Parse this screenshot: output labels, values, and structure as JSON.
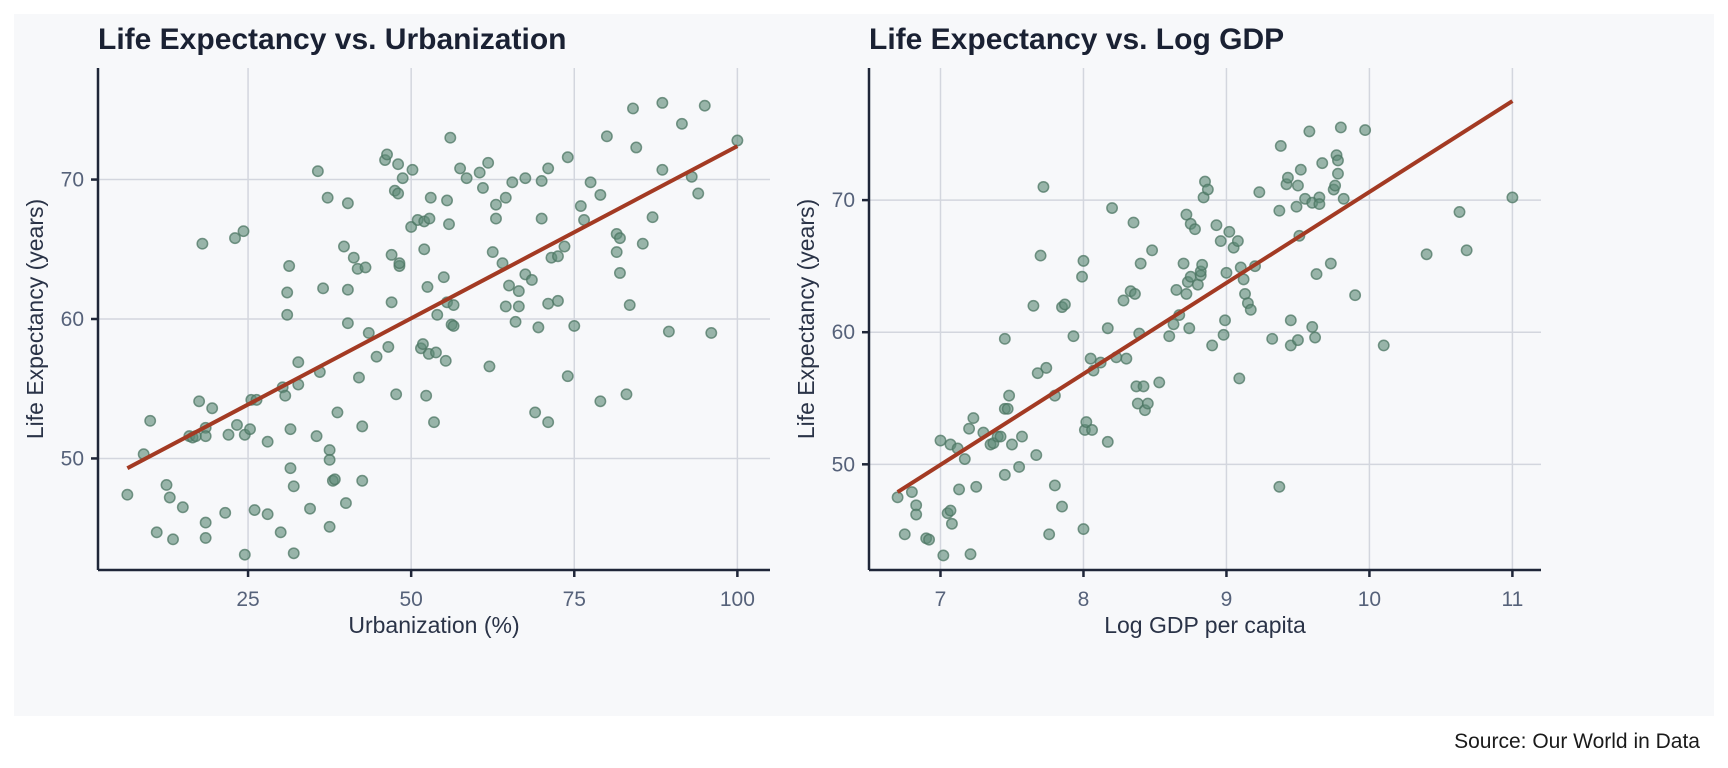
{
  "source_note": "Source: Our World in Data",
  "colors": {
    "points": "#5e8a78",
    "fit_line": "#a33a23",
    "background": "#f7f8fa",
    "grid": "#d3d6de"
  },
  "chart_data": [
    {
      "type": "scatter",
      "title": "Life Expectancy vs. Urbanization",
      "xlabel": "Urbanization (%)",
      "ylabel": "Life Expectancy (years)",
      "xlim": [
        2,
        105
      ],
      "ylim": [
        42,
        78
      ],
      "xticks": [
        25,
        50,
        75,
        100
      ],
      "yticks": [
        50,
        60,
        70
      ],
      "grid": true,
      "trendline": {
        "x": [
          6.5,
          100
        ],
        "y": [
          49.3,
          72.4
        ]
      },
      "points": [
        [
          6.5,
          47.4
        ],
        [
          9,
          50.3
        ],
        [
          10,
          52.7
        ],
        [
          11,
          44.7
        ],
        [
          12.5,
          48.1
        ],
        [
          13,
          47.2
        ],
        [
          13.5,
          44.2
        ],
        [
          15,
          46.5
        ],
        [
          16,
          51.6
        ],
        [
          16.5,
          51.5
        ],
        [
          17,
          51.6
        ],
        [
          17.5,
          54.1
        ],
        [
          18,
          65.4
        ],
        [
          18.5,
          52.2
        ],
        [
          18.5,
          51.6
        ],
        [
          18.5,
          44.3
        ],
        [
          18.5,
          45.4
        ],
        [
          19.5,
          53.6
        ],
        [
          21.5,
          46.1
        ],
        [
          22,
          51.7
        ],
        [
          23,
          65.8
        ],
        [
          23.3,
          52.4
        ],
        [
          24.3,
          66.3
        ],
        [
          24.5,
          51.7
        ],
        [
          24.5,
          43.1
        ],
        [
          25.3,
          52.1
        ],
        [
          25.5,
          54.2
        ],
        [
          26,
          46.3
        ],
        [
          26.3,
          54.2
        ],
        [
          28,
          46
        ],
        [
          28,
          51.2
        ],
        [
          30,
          44.7
        ],
        [
          30.3,
          55.1
        ],
        [
          30.7,
          54.5
        ],
        [
          31,
          60.3
        ],
        [
          31,
          61.9
        ],
        [
          31.3,
          63.8
        ],
        [
          31.5,
          52.1
        ],
        [
          31.5,
          49.3
        ],
        [
          32,
          48
        ],
        [
          32,
          43.2
        ],
        [
          32.7,
          55.3
        ],
        [
          32.7,
          56.9
        ],
        [
          34.5,
          46.4
        ],
        [
          35.5,
          51.6
        ],
        [
          35.7,
          70.6
        ],
        [
          36,
          56.2
        ],
        [
          36.5,
          62.2
        ],
        [
          37.2,
          68.7
        ],
        [
          37.5,
          50.6
        ],
        [
          37.5,
          49.9
        ],
        [
          37.5,
          45.1
        ],
        [
          38,
          48.4
        ],
        [
          38.3,
          48.5
        ],
        [
          38.7,
          53.3
        ],
        [
          39.7,
          65.2
        ],
        [
          40,
          46.8
        ],
        [
          40.3,
          68.3
        ],
        [
          40.3,
          62.1
        ],
        [
          40.3,
          59.7
        ],
        [
          41.2,
          64.4
        ],
        [
          41.8,
          63.6
        ],
        [
          42,
          55.8
        ],
        [
          42.5,
          52.3
        ],
        [
          42.5,
          48.4
        ],
        [
          43,
          63.7
        ],
        [
          43.5,
          59
        ],
        [
          44.7,
          57.3
        ],
        [
          46,
          71.4
        ],
        [
          46.3,
          71.8
        ],
        [
          46.5,
          58
        ],
        [
          47,
          61.2
        ],
        [
          47,
          64.6
        ],
        [
          47.5,
          69.2
        ],
        [
          47.7,
          54.6
        ],
        [
          48,
          71.1
        ],
        [
          48,
          69
        ],
        [
          48.2,
          63.8
        ],
        [
          48.2,
          64
        ],
        [
          48.7,
          70.1
        ],
        [
          50,
          66.6
        ],
        [
          50.2,
          70.7
        ],
        [
          51,
          67.1
        ],
        [
          51.5,
          57.9
        ],
        [
          51.8,
          58.2
        ],
        [
          52,
          67
        ],
        [
          52,
          65
        ],
        [
          52.3,
          54.5
        ],
        [
          52.5,
          62.3
        ],
        [
          52.7,
          57.5
        ],
        [
          52.8,
          67.2
        ],
        [
          53,
          68.7
        ],
        [
          53.5,
          52.6
        ],
        [
          53.8,
          57.6
        ],
        [
          54,
          60.3
        ],
        [
          55,
          63
        ],
        [
          55.3,
          57
        ],
        [
          55.5,
          61.2
        ],
        [
          55.5,
          68.5
        ],
        [
          55.8,
          66.8
        ],
        [
          56,
          73
        ],
        [
          56.2,
          59.6
        ],
        [
          56.5,
          61
        ],
        [
          56.5,
          59.5
        ],
        [
          57.5,
          70.8
        ],
        [
          58.5,
          70.1
        ],
        [
          60.5,
          70.5
        ],
        [
          61,
          69.4
        ],
        [
          61.8,
          71.2
        ],
        [
          62,
          56.6
        ],
        [
          62.5,
          64.8
        ],
        [
          63,
          68.2
        ],
        [
          63,
          67.2
        ],
        [
          64,
          64
        ],
        [
          64.5,
          60.9
        ],
        [
          64.5,
          68.7
        ],
        [
          65,
          62.4
        ],
        [
          65.5,
          69.8
        ],
        [
          66,
          59.8
        ],
        [
          66.5,
          60.9
        ],
        [
          66.5,
          62
        ],
        [
          67.5,
          70.1
        ],
        [
          67.5,
          63.2
        ],
        [
          68.5,
          62.8
        ],
        [
          69,
          53.3
        ],
        [
          69.5,
          59.4
        ],
        [
          70,
          69.9
        ],
        [
          70,
          67.2
        ],
        [
          71,
          61.1
        ],
        [
          71,
          52.6
        ],
        [
          71,
          70.8
        ],
        [
          71.5,
          64.4
        ],
        [
          72.5,
          61.3
        ],
        [
          72.5,
          64.5
        ],
        [
          73.5,
          65.2
        ],
        [
          74,
          71.6
        ],
        [
          74,
          55.9
        ],
        [
          75,
          59.5
        ],
        [
          76,
          68.1
        ],
        [
          76.5,
          67.1
        ],
        [
          77.5,
          69.8
        ],
        [
          79,
          68.9
        ],
        [
          79,
          54.1
        ],
        [
          80,
          73.1
        ],
        [
          81.5,
          64.8
        ],
        [
          81.5,
          66.1
        ],
        [
          82,
          63.3
        ],
        [
          82,
          65.8
        ],
        [
          83,
          54.6
        ],
        [
          83.5,
          61
        ],
        [
          84,
          75.1
        ],
        [
          84.5,
          72.3
        ],
        [
          85.5,
          65.4
        ],
        [
          87,
          67.3
        ],
        [
          88.5,
          75.5
        ],
        [
          88.5,
          70.7
        ],
        [
          89.5,
          59.1
        ],
        [
          91.5,
          74
        ],
        [
          93,
          70.2
        ],
        [
          94,
          69
        ],
        [
          95,
          75.3
        ],
        [
          96,
          59
        ],
        [
          100,
          72.8
        ]
      ]
    },
    {
      "type": "scatter",
      "title": "Life Expectancy vs. Log GDP",
      "xlabel": "Log GDP per capita",
      "ylabel": "Life Expectancy (years)",
      "xlim": [
        6.5,
        11.2
      ],
      "ylim": [
        42,
        80
      ],
      "xticks": [
        7,
        8,
        9,
        10,
        11
      ],
      "yticks": [
        50,
        60,
        70
      ],
      "grid": true,
      "trendline": {
        "x": [
          6.7,
          11
        ],
        "y": [
          47.9,
          77.5
        ]
      },
      "points": [
        [
          6.7,
          47.5
        ],
        [
          6.75,
          44.7
        ],
        [
          6.8,
          47.9
        ],
        [
          6.83,
          46.9
        ],
        [
          6.83,
          46.2
        ],
        [
          6.9,
          44.4
        ],
        [
          6.92,
          44.3
        ],
        [
          7,
          51.8
        ],
        [
          7.02,
          43.1
        ],
        [
          7.05,
          46.3
        ],
        [
          7.07,
          46.5
        ],
        [
          7.07,
          51.5
        ],
        [
          7.08,
          45.5
        ],
        [
          7.12,
          51.2
        ],
        [
          7.13,
          48.1
        ],
        [
          7.17,
          50.4
        ],
        [
          7.2,
          52.7
        ],
        [
          7.21,
          43.2
        ],
        [
          7.23,
          53.5
        ],
        [
          7.25,
          48.3
        ],
        [
          7.3,
          52.4
        ],
        [
          7.35,
          51.5
        ],
        [
          7.37,
          51.6
        ],
        [
          7.4,
          52.1
        ],
        [
          7.42,
          52.1
        ],
        [
          7.45,
          49.2
        ],
        [
          7.45,
          59.5
        ],
        [
          7.45,
          54.2
        ],
        [
          7.47,
          54.2
        ],
        [
          7.48,
          55.2
        ],
        [
          7.5,
          51.5
        ],
        [
          7.55,
          49.8
        ],
        [
          7.57,
          52.1
        ],
        [
          7.65,
          62
        ],
        [
          7.67,
          50.7
        ],
        [
          7.68,
          56.9
        ],
        [
          7.7,
          65.8
        ],
        [
          7.72,
          71
        ],
        [
          7.74,
          57.3
        ],
        [
          7.76,
          44.7
        ],
        [
          7.8,
          48.4
        ],
        [
          7.8,
          55.2
        ],
        [
          7.85,
          46.8
        ],
        [
          7.85,
          61.9
        ],
        [
          7.87,
          62.1
        ],
        [
          7.93,
          59.7
        ],
        [
          7.99,
          64.2
        ],
        [
          8,
          45.1
        ],
        [
          8,
          65.4
        ],
        [
          8.01,
          52.6
        ],
        [
          8.02,
          53.2
        ],
        [
          8.05,
          58
        ],
        [
          8.06,
          52.6
        ],
        [
          8.07,
          57.1
        ],
        [
          8.12,
          57.7
        ],
        [
          8.17,
          51.7
        ],
        [
          8.17,
          60.3
        ],
        [
          8.2,
          69.4
        ],
        [
          8.23,
          58.1
        ],
        [
          8.28,
          62.4
        ],
        [
          8.3,
          58
        ],
        [
          8.33,
          63.1
        ],
        [
          8.35,
          68.3
        ],
        [
          8.36,
          62.9
        ],
        [
          8.37,
          55.9
        ],
        [
          8.38,
          54.6
        ],
        [
          8.39,
          59.9
        ],
        [
          8.4,
          65.2
        ],
        [
          8.42,
          55.9
        ],
        [
          8.43,
          54.1
        ],
        [
          8.45,
          54.6
        ],
        [
          8.48,
          66.2
        ],
        [
          8.53,
          56.2
        ],
        [
          8.6,
          59.7
        ],
        [
          8.63,
          60.6
        ],
        [
          8.65,
          63.2
        ],
        [
          8.67,
          61.3
        ],
        [
          8.7,
          65.2
        ],
        [
          8.72,
          68.9
        ],
        [
          8.72,
          62.9
        ],
        [
          8.73,
          63.8
        ],
        [
          8.74,
          60.3
        ],
        [
          8.75,
          64.2
        ],
        [
          8.75,
          68.2
        ],
        [
          8.78,
          67.8
        ],
        [
          8.8,
          63.6
        ],
        [
          8.82,
          64.3
        ],
        [
          8.82,
          64.6
        ],
        [
          8.83,
          65.1
        ],
        [
          8.84,
          70.2
        ],
        [
          8.85,
          71.4
        ],
        [
          8.87,
          70.8
        ],
        [
          8.9,
          59
        ],
        [
          8.93,
          68.1
        ],
        [
          8.96,
          66.9
        ],
        [
          8.98,
          59.8
        ],
        [
          8.99,
          60.9
        ],
        [
          9,
          64.5
        ],
        [
          9.02,
          67.6
        ],
        [
          9.05,
          66.4
        ],
        [
          9.08,
          66.9
        ],
        [
          9.09,
          56.5
        ],
        [
          9.1,
          64.9
        ],
        [
          9.12,
          64
        ],
        [
          9.13,
          62.9
        ],
        [
          9.15,
          62.2
        ],
        [
          9.17,
          61.7
        ],
        [
          9.2,
          65
        ],
        [
          9.23,
          70.6
        ],
        [
          9.32,
          59.5
        ],
        [
          9.37,
          48.3
        ],
        [
          9.37,
          69.2
        ],
        [
          9.38,
          74.1
        ],
        [
          9.42,
          71.2
        ],
        [
          9.43,
          71.7
        ],
        [
          9.45,
          60.9
        ],
        [
          9.45,
          59
        ],
        [
          9.49,
          69.5
        ],
        [
          9.5,
          59.4
        ],
        [
          9.5,
          71.1
        ],
        [
          9.51,
          67.3
        ],
        [
          9.52,
          72.3
        ],
        [
          9.55,
          70.1
        ],
        [
          9.58,
          75.2
        ],
        [
          9.6,
          60.4
        ],
        [
          9.6,
          69.8
        ],
        [
          9.62,
          59.6
        ],
        [
          9.63,
          64.4
        ],
        [
          9.65,
          70.2
        ],
        [
          9.65,
          69.7
        ],
        [
          9.67,
          72.8
        ],
        [
          9.73,
          65.2
        ],
        [
          9.75,
          70.8
        ],
        [
          9.76,
          71.1
        ],
        [
          9.77,
          73.4
        ],
        [
          9.78,
          73
        ],
        [
          9.78,
          72
        ],
        [
          9.8,
          75.5
        ],
        [
          9.82,
          70.1
        ],
        [
          9.9,
          62.8
        ],
        [
          9.97,
          75.3
        ],
        [
          10.1,
          59
        ],
        [
          10.4,
          65.9
        ],
        [
          10.63,
          69.1
        ],
        [
          10.68,
          66.2
        ],
        [
          11,
          70.2
        ]
      ]
    }
  ]
}
